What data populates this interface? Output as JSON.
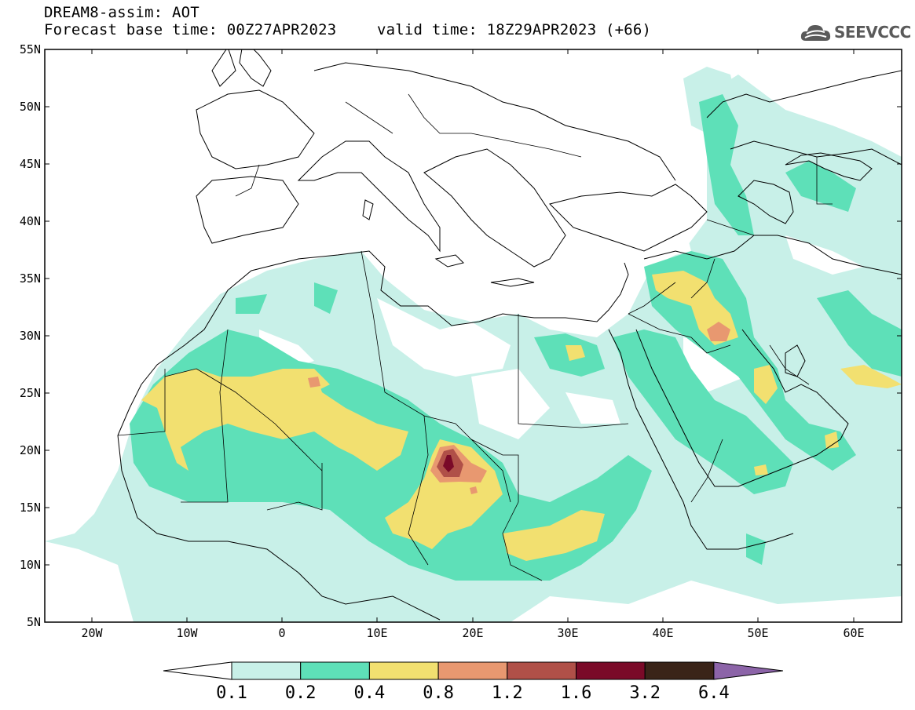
{
  "header": {
    "title_line1": "DREAM8-assim: AOT",
    "title_line2a": "Forecast base time: 00Z27APR2023",
    "title_line2b": "valid time: 18Z29APR2023 (+66)"
  },
  "logo": {
    "name": "cloud-logo-icon",
    "text": "SEEVCCC"
  },
  "axes": {
    "lon_ticks": [
      "20W",
      "10W",
      "0",
      "10E",
      "20E",
      "30E",
      "40E",
      "50E",
      "60E"
    ],
    "lat_ticks": [
      "55N",
      "50N",
      "45N",
      "40N",
      "35N",
      "30N",
      "25N",
      "20N",
      "15N",
      "10N",
      "5N"
    ]
  },
  "colorbar": {
    "levels": [
      "0.1",
      "0.2",
      "0.4",
      "0.8",
      "1.2",
      "1.6",
      "3.2",
      "6.4"
    ],
    "colors": [
      "#ffffff",
      "#c8f0e8",
      "#5ee0b8",
      "#f2e070",
      "#e89870",
      "#b05048",
      "#7a0a28",
      "#3a2418",
      "#8c64a8"
    ]
  },
  "colors": {
    "aot_0_1": "#c8f0e8",
    "aot_0_2": "#5ee0b8",
    "aot_0_4": "#f2e070",
    "aot_0_8": "#e89870",
    "aot_1_2": "#b05048",
    "aot_1_6": "#7a0a28"
  }
}
